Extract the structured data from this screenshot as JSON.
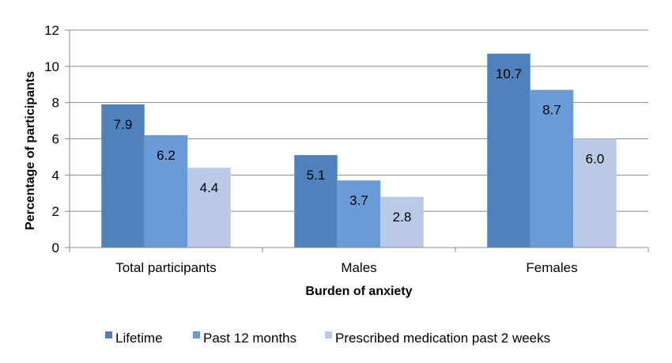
{
  "chart_data": {
    "type": "bar",
    "title": "",
    "xlabel": "Burden of anxiety",
    "ylabel": "Percentage of participants",
    "ylim": [
      0,
      12
    ],
    "yticks": [
      0,
      2,
      4,
      6,
      8,
      10,
      12
    ],
    "grid": true,
    "legend_position": "bottom",
    "categories": [
      "Total participants",
      "Males",
      "Females"
    ],
    "series": [
      {
        "name": "Lifetime",
        "values": [
          7.9,
          5.1,
          10.7
        ],
        "labels": [
          "7.9",
          "5.1",
          "10.7"
        ],
        "color": "#4f81bd"
      },
      {
        "name": "Past 12 months",
        "values": [
          6.2,
          3.7,
          8.7
        ],
        "labels": [
          "6.2",
          "3.7",
          "8.7"
        ],
        "color": "#6a9bd8"
      },
      {
        "name": "Prescribed medication past 2 weeks",
        "values": [
          4.4,
          2.8,
          6.0
        ],
        "labels": [
          "4.4",
          "2.8",
          "6.0"
        ],
        "color": "#b9c9e6"
      }
    ]
  }
}
